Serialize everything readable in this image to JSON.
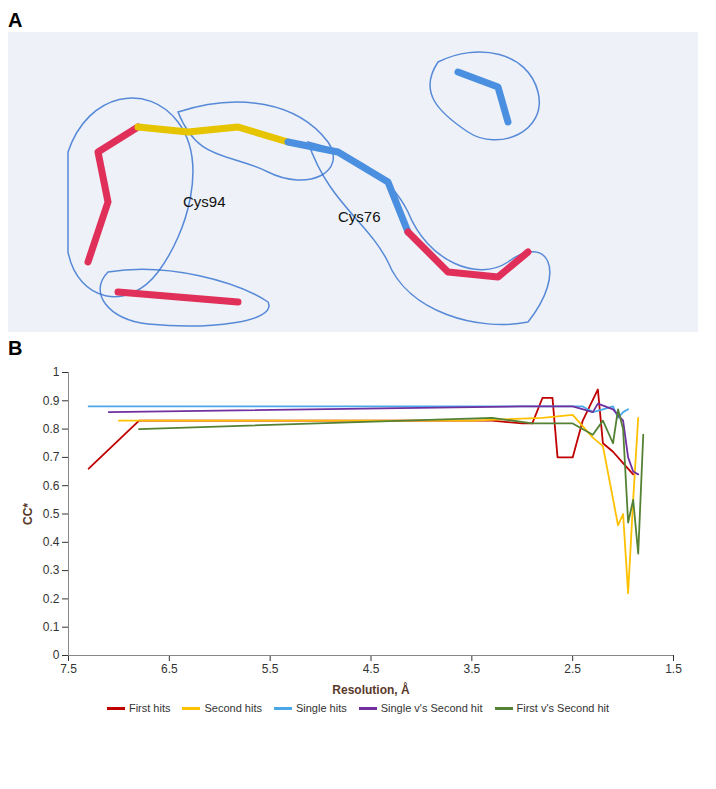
{
  "figure": {
    "panel_a": {
      "letter": "A",
      "labels": [
        "Cys94",
        "Cys76"
      ]
    },
    "panel_b": {
      "letter": "B"
    }
  },
  "chart_data": {
    "type": "line",
    "x_label": "Resolution, Å",
    "y_label": "CC*",
    "xlim": [
      7.5,
      1.5
    ],
    "xticks": [
      7.5,
      6.5,
      5.5,
      4.5,
      3.5,
      2.5,
      1.5
    ],
    "ylim": [
      0,
      1
    ],
    "yticks": [
      0,
      0.1,
      0.2,
      0.3,
      0.4,
      0.5,
      0.6,
      0.7,
      0.8,
      0.9,
      1
    ],
    "grid": false,
    "legend": "bottom",
    "series": [
      {
        "name": "First hits",
        "color": "#c00000",
        "x": [
          7.3,
          6.8,
          3.3,
          3.0,
          2.9,
          2.8,
          2.7,
          2.65,
          2.5,
          2.4,
          2.25,
          2.2,
          2.1,
          2.0,
          1.9
        ],
        "values": [
          0.66,
          0.83,
          0.83,
          0.82,
          0.82,
          0.91,
          0.91,
          0.7,
          0.7,
          0.83,
          0.94,
          0.75,
          0.72,
          0.68,
          0.64
        ]
      },
      {
        "name": "Second hits",
        "color": "#ffc000",
        "x": [
          7.0,
          3.5,
          2.8,
          2.5,
          2.3,
          2.2,
          2.05,
          2.0,
          1.95,
          1.9,
          1.85
        ],
        "values": [
          0.83,
          0.83,
          0.84,
          0.85,
          0.77,
          0.74,
          0.46,
          0.5,
          0.22,
          0.55,
          0.84
        ]
      },
      {
        "name": "Single hits",
        "color": "#4aa8e8",
        "x": [
          7.3,
          2.4,
          2.3,
          2.2,
          2.1,
          2.05,
          2.0,
          1.95
        ],
        "values": [
          0.88,
          0.88,
          0.86,
          0.87,
          0.88,
          0.84,
          0.86,
          0.87
        ]
      },
      {
        "name": "Single v's Second hit",
        "color": "#7030a0",
        "x": [
          7.1,
          3.0,
          2.5,
          2.3,
          2.25,
          2.1,
          2.0,
          1.95,
          1.9,
          1.85
        ],
        "values": [
          0.86,
          0.88,
          0.88,
          0.86,
          0.89,
          0.87,
          0.83,
          0.7,
          0.65,
          0.64
        ]
      },
      {
        "name": "First v's Second hit",
        "color": "#548235",
        "x": [
          6.8,
          3.3,
          2.9,
          2.5,
          2.3,
          2.2,
          2.1,
          2.05,
          2.0,
          1.95,
          1.9,
          1.85,
          1.8
        ],
        "values": [
          0.8,
          0.84,
          0.82,
          0.82,
          0.78,
          0.83,
          0.75,
          0.87,
          0.8,
          0.47,
          0.55,
          0.36,
          0.78
        ]
      }
    ]
  }
}
